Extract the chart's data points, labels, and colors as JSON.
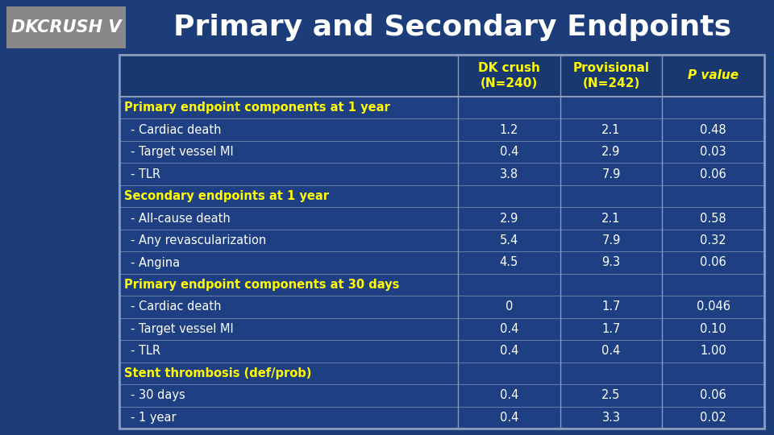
{
  "title": "Primary and Secondary Endpoints",
  "title_label": "DKCRUSH V",
  "bg_color": "#1c3d7a",
  "table_bg": "#1e3f82",
  "border_color": "#8899bb",
  "yellow_color": "#ffff00",
  "white_color": "#ffffff",
  "gray_box_color": "#888888",
  "rows": [
    {
      "label": "Primary endpoint components at 1 year",
      "type": "section",
      "values": [
        "",
        "",
        ""
      ]
    },
    {
      "label": " - Cardiac death",
      "type": "data",
      "values": [
        "1.2",
        "2.1",
        "0.48"
      ]
    },
    {
      "label": " - Target vessel MI",
      "type": "data",
      "values": [
        "0.4",
        "2.9",
        "0.03"
      ]
    },
    {
      "label": " - TLR",
      "type": "data",
      "values": [
        "3.8",
        "7.9",
        "0.06"
      ]
    },
    {
      "label": "Secondary endpoints at 1 year",
      "type": "section",
      "values": [
        "",
        "",
        ""
      ]
    },
    {
      "label": " - All-cause death",
      "type": "data",
      "values": [
        "2.9",
        "2.1",
        "0.58"
      ]
    },
    {
      "label": " - Any revascularization",
      "type": "data",
      "values": [
        "5.4",
        "7.9",
        "0.32"
      ]
    },
    {
      "label": " - Angina",
      "type": "data",
      "values": [
        "4.5",
        "9.3",
        "0.06"
      ]
    },
    {
      "label": "Primary endpoint components at 30 days",
      "type": "section",
      "values": [
        "",
        "",
        ""
      ]
    },
    {
      "label": " - Cardiac death",
      "type": "data",
      "values": [
        "0",
        "1.7",
        "0.046"
      ]
    },
    {
      "label": " - Target vessel MI",
      "type": "data",
      "values": [
        "0.4",
        "1.7",
        "0.10"
      ]
    },
    {
      "label": " - TLR",
      "type": "data",
      "values": [
        "0.4",
        "0.4",
        "1.00"
      ]
    },
    {
      "label": "Stent thrombosis (def/prob)",
      "type": "section",
      "values": [
        "",
        "",
        ""
      ]
    },
    {
      "label": " - 30 days",
      "type": "data",
      "values": [
        "0.4",
        "2.5",
        "0.06"
      ]
    },
    {
      "label": " - 1 year",
      "type": "data",
      "values": [
        "0.4",
        "3.3",
        "0.02"
      ]
    }
  ],
  "fig_w": 9.6,
  "fig_h": 5.4,
  "dpi": 100
}
